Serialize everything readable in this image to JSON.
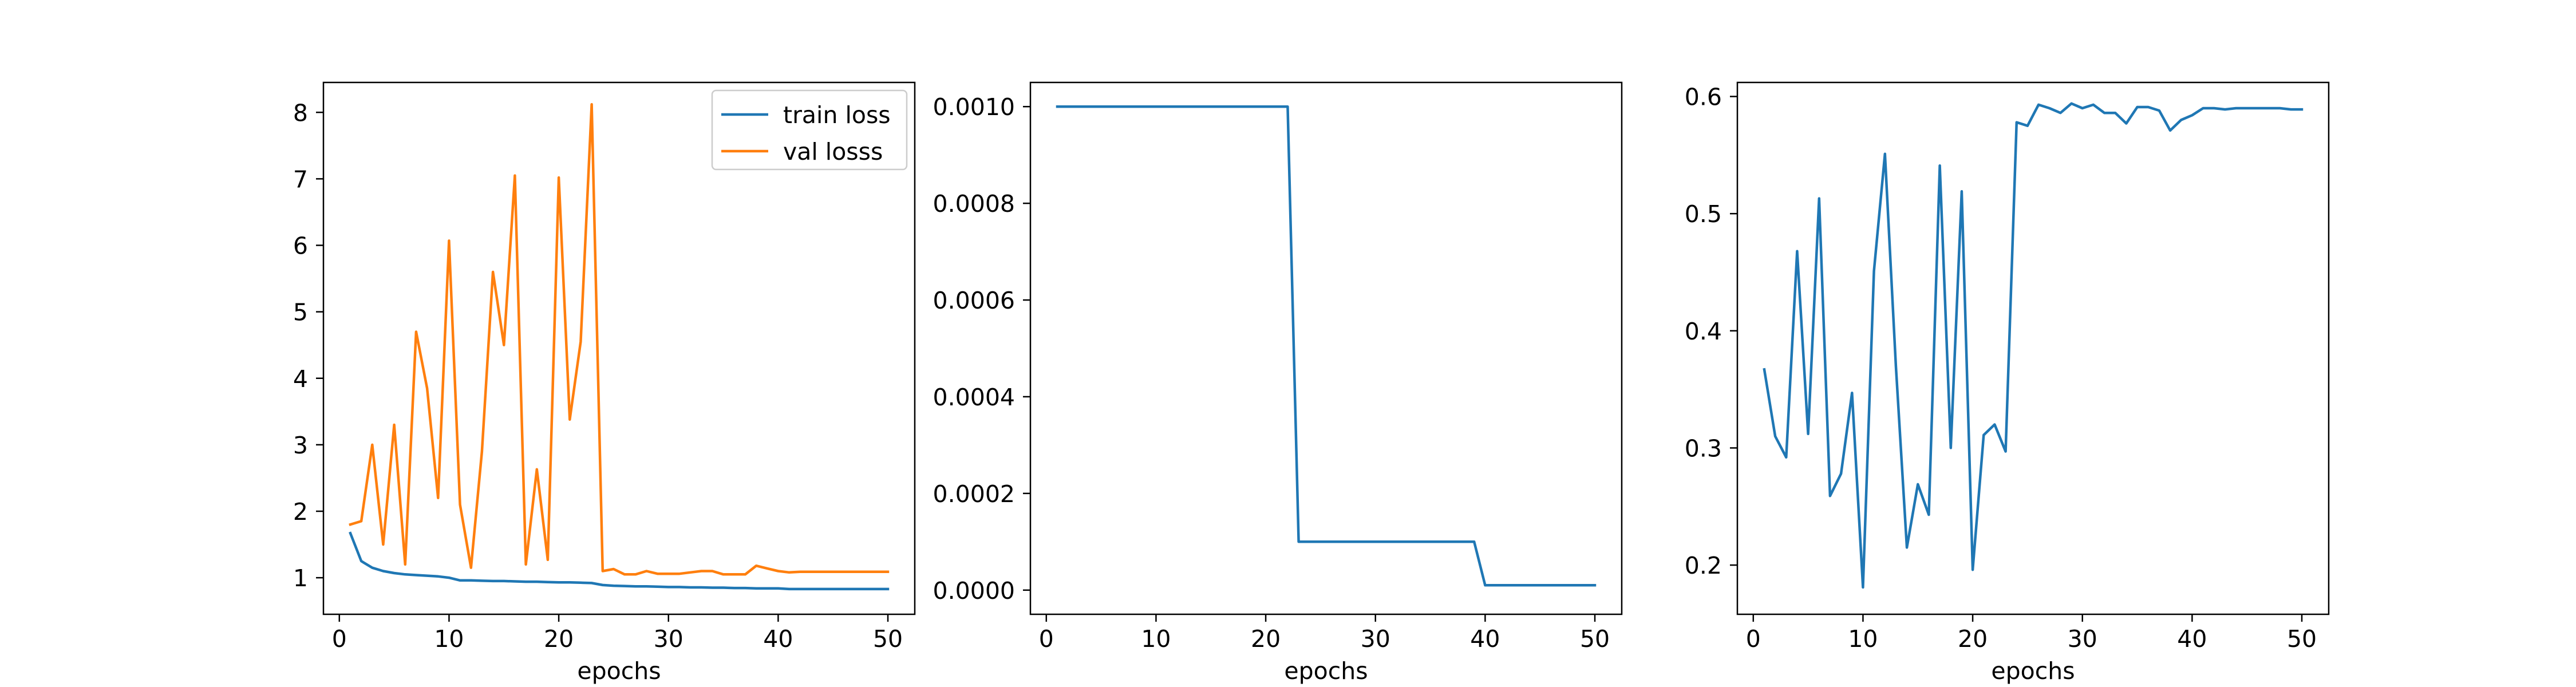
{
  "chart_data": [
    {
      "type": "line",
      "title": "",
      "xlabel": "epochs",
      "ylabel": "",
      "xlim": [
        -1.45,
        52.45
      ],
      "ylim": [
        0.45,
        8.45
      ],
      "xticks": [
        0,
        10,
        20,
        30,
        40,
        50
      ],
      "yticks": [
        1,
        2,
        3,
        4,
        5,
        6,
        7,
        8
      ],
      "ytick_labels": [
        "1",
        "2",
        "3",
        "4",
        "5",
        "6",
        "7",
        "8"
      ],
      "grid": false,
      "legend": "top-right",
      "x": [
        1,
        2,
        3,
        4,
        5,
        6,
        7,
        8,
        9,
        10,
        11,
        12,
        13,
        14,
        15,
        16,
        17,
        18,
        19,
        20,
        21,
        22,
        23,
        24,
        25,
        26,
        27,
        28,
        29,
        30,
        31,
        32,
        33,
        34,
        35,
        36,
        37,
        38,
        39,
        40,
        41,
        42,
        43,
        44,
        45,
        46,
        47,
        48,
        49,
        50
      ],
      "series": [
        {
          "name": "train loss",
          "color": "#1f77b4",
          "values": [
            1.67,
            1.25,
            1.15,
            1.1,
            1.07,
            1.05,
            1.04,
            1.03,
            1.02,
            1.0,
            0.96,
            0.96,
            0.955,
            0.95,
            0.95,
            0.945,
            0.94,
            0.94,
            0.935,
            0.93,
            0.93,
            0.925,
            0.92,
            0.89,
            0.88,
            0.875,
            0.87,
            0.87,
            0.865,
            0.86,
            0.86,
            0.855,
            0.855,
            0.85,
            0.85,
            0.845,
            0.845,
            0.84,
            0.84,
            0.84,
            0.83,
            0.83,
            0.83,
            0.83,
            0.83,
            0.83,
            0.83,
            0.83,
            0.83,
            0.83
          ]
        },
        {
          "name": "val losss",
          "color": "#ff7f0e",
          "values": [
            1.8,
            1.85,
            3.0,
            1.5,
            3.3,
            1.2,
            4.7,
            3.85,
            2.2,
            6.07,
            2.1,
            1.15,
            2.9,
            5.6,
            4.5,
            7.05,
            1.2,
            2.63,
            1.27,
            7.02,
            3.38,
            4.55,
            8.12,
            1.1,
            1.13,
            1.05,
            1.05,
            1.1,
            1.06,
            1.06,
            1.06,
            1.08,
            1.1,
            1.1,
            1.05,
            1.05,
            1.05,
            1.18,
            1.14,
            1.1,
            1.08,
            1.09,
            1.09,
            1.09,
            1.09,
            1.09,
            1.09,
            1.09,
            1.09,
            1.09
          ]
        }
      ]
    },
    {
      "type": "line",
      "title": "",
      "xlabel": "epochs",
      "ylabel": "",
      "xlim": [
        -1.45,
        52.45
      ],
      "ylim": [
        -5e-05,
        0.00105
      ],
      "xticks": [
        0,
        10,
        20,
        30,
        40,
        50
      ],
      "yticks": [
        0,
        0.0002,
        0.0004,
        0.0006,
        0.0008,
        0.001
      ],
      "ytick_labels": [
        "0.0000",
        "0.0002",
        "0.0004",
        "0.0006",
        "0.0008",
        "0.0010"
      ],
      "grid": false,
      "legend": "none",
      "x": [
        1,
        2,
        3,
        4,
        5,
        6,
        7,
        8,
        9,
        10,
        11,
        12,
        13,
        14,
        15,
        16,
        17,
        18,
        19,
        20,
        21,
        22,
        23,
        24,
        25,
        26,
        27,
        28,
        29,
        30,
        31,
        32,
        33,
        34,
        35,
        36,
        37,
        38,
        39,
        40,
        41,
        42,
        43,
        44,
        45,
        46,
        47,
        48,
        49,
        50
      ],
      "series": [
        {
          "color": "#1f77b4",
          "values": [
            0.001,
            0.001,
            0.001,
            0.001,
            0.001,
            0.001,
            0.001,
            0.001,
            0.001,
            0.001,
            0.001,
            0.001,
            0.001,
            0.001,
            0.001,
            0.001,
            0.001,
            0.001,
            0.001,
            0.001,
            0.001,
            0.001,
            0.0001,
            0.0001,
            0.0001,
            0.0001,
            0.0001,
            0.0001,
            0.0001,
            0.0001,
            0.0001,
            0.0001,
            0.0001,
            0.0001,
            0.0001,
            0.0001,
            0.0001,
            0.0001,
            0.0001,
            1e-05,
            1e-05,
            1e-05,
            1e-05,
            1e-05,
            1e-05,
            1e-05,
            1e-05,
            1e-05,
            1e-05,
            1e-05
          ]
        }
      ]
    },
    {
      "type": "line",
      "title": "",
      "xlabel": "epochs",
      "ylabel": "",
      "xlim": [
        -1.45,
        52.45
      ],
      "ylim": [
        0.158,
        0.612
      ],
      "xticks": [
        0,
        10,
        20,
        30,
        40,
        50
      ],
      "yticks": [
        0.2,
        0.3,
        0.4,
        0.5,
        0.6
      ],
      "ytick_labels": [
        "0.2",
        "0.3",
        "0.4",
        "0.5",
        "0.6"
      ],
      "grid": false,
      "legend": "none",
      "x": [
        1,
        2,
        3,
        4,
        5,
        6,
        7,
        8,
        9,
        10,
        11,
        12,
        13,
        14,
        15,
        16,
        17,
        18,
        19,
        20,
        21,
        22,
        23,
        24,
        25,
        26,
        27,
        28,
        29,
        30,
        31,
        32,
        33,
        34,
        35,
        36,
        37,
        38,
        39,
        40,
        41,
        42,
        43,
        44,
        45,
        46,
        47,
        48,
        49,
        50
      ],
      "series": [
        {
          "color": "#1f77b4",
          "values": [
            0.367,
            0.31,
            0.292,
            0.468,
            0.312,
            0.513,
            0.259,
            0.278,
            0.347,
            0.181,
            0.451,
            0.551,
            0.37,
            0.215,
            0.269,
            0.243,
            0.541,
            0.3,
            0.519,
            0.196,
            0.311,
            0.32,
            0.297,
            0.578,
            0.575,
            0.593,
            0.59,
            0.586,
            0.594,
            0.59,
            0.593,
            0.586,
            0.586,
            0.577,
            0.591,
            0.591,
            0.588,
            0.571,
            0.58,
            0.584,
            0.59,
            0.59,
            0.589,
            0.59,
            0.59,
            0.59,
            0.59,
            0.59,
            0.589,
            0.589
          ]
        }
      ]
    }
  ]
}
